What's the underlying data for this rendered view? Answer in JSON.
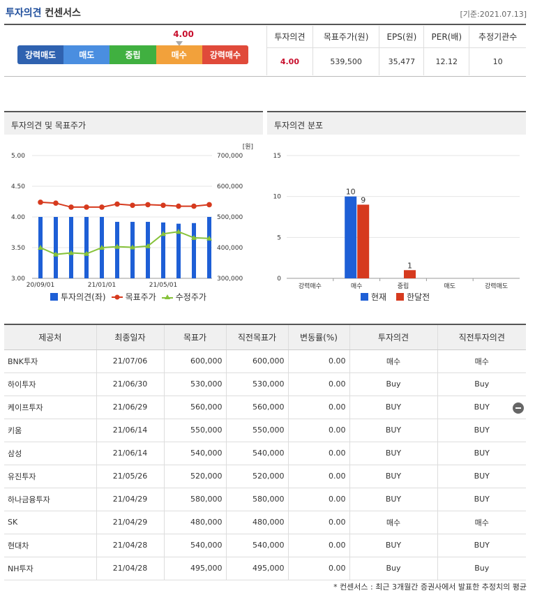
{
  "header": {
    "title_prefix": "투자의견",
    "title_suffix": "컨센서스",
    "ref_date": "[기준:2021.07.13]"
  },
  "scale": {
    "current_value": "4.00",
    "current_level": 4.0,
    "labels": [
      "강력매도",
      "매도",
      "중립",
      "매수",
      "강력매수"
    ],
    "colors": [
      "#2f62b0",
      "#4a8ee0",
      "#40b040",
      "#f2a13b",
      "#e04a3a"
    ]
  },
  "summary": {
    "headers": [
      "투자의견",
      "목표주가(원)",
      "EPS(원)",
      "PER(배)",
      "추정기관수"
    ],
    "values": [
      "4.00",
      "539,500",
      "35,477",
      "12.12",
      "10"
    ]
  },
  "chart1": {
    "title": "투자의견 및 목표주가",
    "unit": "[원]",
    "legend": [
      "투자의견(좌)",
      "목표주가",
      "수정주가"
    ]
  },
  "chart2": {
    "title": "투자의견 분포",
    "legend": [
      "현재",
      "한달전"
    ]
  },
  "chart_data": [
    {
      "type": "bar+line",
      "title": "투자의견 및 목표주가",
      "x_tick_labels": [
        "20/09/01",
        "21/01/01",
        "21/05/01"
      ],
      "y_left_ticks": [
        "5.00",
        "4.50",
        "4.00",
        "3.50",
        "3.00"
      ],
      "y_right_ticks": [
        "700,000",
        "600,000",
        "500,000",
        "400,000",
        "300,000"
      ],
      "ylim_left": [
        3.0,
        5.0
      ],
      "ylim_right": [
        300000,
        700000
      ],
      "series": [
        {
          "name": "투자의견(좌)",
          "type": "bar",
          "color": "#1e5fd6",
          "values": [
            4.0,
            4.0,
            4.0,
            4.0,
            4.0,
            3.92,
            3.92,
            3.92,
            3.91,
            3.89,
            3.9,
            4.0
          ]
        },
        {
          "name": "목표주가",
          "type": "line",
          "color": "#d63a1e",
          "values": [
            548000,
            545000,
            532000,
            532000,
            532000,
            542000,
            538000,
            540000,
            538000,
            535000,
            535000,
            540000
          ]
        },
        {
          "name": "수정주가",
          "type": "line",
          "color": "#86c23a",
          "values": [
            400000,
            378000,
            383000,
            380000,
            400000,
            403000,
            401000,
            405000,
            445000,
            452000,
            432000,
            430000
          ]
        }
      ]
    },
    {
      "type": "bar",
      "title": "투자의견 분포",
      "categories": [
        "강력매수",
        "매수",
        "중립",
        "매도",
        "강력매도"
      ],
      "y_ticks": [
        "15",
        "10",
        "5",
        "0"
      ],
      "ylim": [
        0,
        15
      ],
      "series": [
        {
          "name": "현재",
          "color": "#1e5fd6",
          "values": [
            0,
            10,
            0,
            0,
            0
          ]
        },
        {
          "name": "한달전",
          "color": "#d63a1e",
          "values": [
            0,
            9,
            1,
            0,
            0
          ]
        }
      ],
      "data_labels": [
        "10",
        "9",
        "1"
      ]
    }
  ],
  "table": {
    "headers": [
      "제공처",
      "최종일자",
      "목표가",
      "직전목표가",
      "변동률(%)",
      "투자의견",
      "직전투자의견"
    ],
    "rows": [
      [
        "BNK투자",
        "21/07/06",
        "600,000",
        "600,000",
        "0.00",
        "매수",
        "매수"
      ],
      [
        "하이투자",
        "21/06/30",
        "530,000",
        "530,000",
        "0.00",
        "Buy",
        "Buy"
      ],
      [
        "케이프투자",
        "21/06/29",
        "560,000",
        "560,000",
        "0.00",
        "BUY",
        "BUY"
      ],
      [
        "키움",
        "21/06/14",
        "550,000",
        "550,000",
        "0.00",
        "BUY",
        "BUY"
      ],
      [
        "삼성",
        "21/06/14",
        "540,000",
        "540,000",
        "0.00",
        "BUY",
        "BUY"
      ],
      [
        "유진투자",
        "21/05/26",
        "520,000",
        "520,000",
        "0.00",
        "BUY",
        "BUY"
      ],
      [
        "하나금융투자",
        "21/04/29",
        "580,000",
        "580,000",
        "0.00",
        "BUY",
        "BUY"
      ],
      [
        "SK",
        "21/04/29",
        "480,000",
        "480,000",
        "0.00",
        "매수",
        "매수"
      ],
      [
        "현대차",
        "21/04/28",
        "540,000",
        "540,000",
        "0.00",
        "BUY",
        "BUY"
      ],
      [
        "NH투자",
        "21/04/28",
        "495,000",
        "495,000",
        "0.00",
        "Buy",
        "Buy"
      ]
    ]
  },
  "footnote": "* 컨센서스 : 최근 3개월간 증권사에서 발표한 추정치의 평균"
}
